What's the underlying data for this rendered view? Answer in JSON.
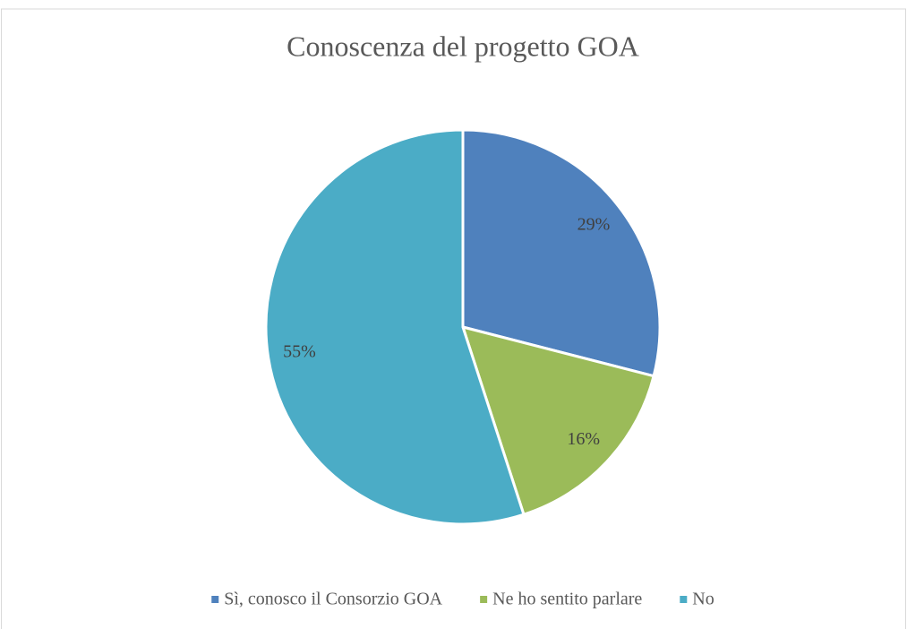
{
  "chart_data": {
    "type": "pie",
    "title": "Conoscenza del progetto GOA",
    "categories": [
      "Sì, conosco il Consorzio GOA",
      "Ne ho sentito parlare",
      "No"
    ],
    "values": [
      29,
      16,
      55
    ],
    "value_labels": [
      "29%",
      "16%",
      "55%"
    ],
    "colors": [
      "#4f81bd",
      "#9bbb59",
      "#4bacc6"
    ],
    "legend": "bottom"
  }
}
